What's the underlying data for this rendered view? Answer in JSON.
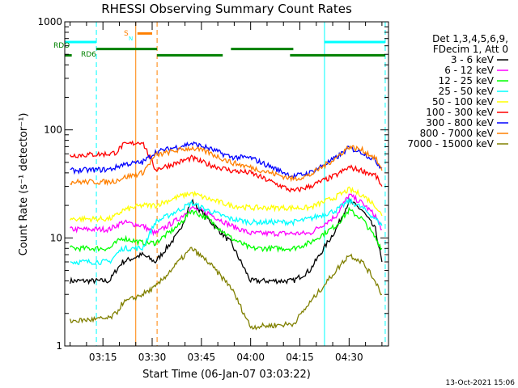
{
  "chart_data": {
    "type": "line",
    "title": "RHESSI Observing Summary Count Rates",
    "xlabel": "Start Time (06-Jan-07 03:03:22)",
    "ylabel": "Count Rate (s⁻¹ detector⁻¹)",
    "y_scale": "log",
    "ylim": [
      1,
      1000
    ],
    "xlim": [
      "03:03:22",
      "04:42:00"
    ],
    "x_ticks": [
      "03:15",
      "03:30",
      "03:45",
      "04:00",
      "04:15",
      "04:30"
    ],
    "y_ticks": [
      "1",
      "10",
      "100",
      "1000"
    ],
    "footer": "13-Oct-2021 15:06",
    "legend_position": "right",
    "legend_header": [
      "Det 1,3,4,5,6,9,",
      "FDecim 1, Att 0"
    ],
    "series": [
      {
        "name": "3 - 6 keV",
        "color": "#000000",
        "x": [
          "03:05",
          "03:17",
          "03:19",
          "03:21",
          "03:27",
          "03:31",
          "03:38",
          "03:42",
          "03:47",
          "03:54",
          "04:00",
          "04:13",
          "04:18",
          "04:26",
          "04:30",
          "04:34",
          "04:38",
          "04:40"
        ],
        "values": [
          4,
          4,
          5,
          6,
          7,
          6,
          11,
          22,
          15,
          9,
          4,
          4,
          5,
          12,
          22,
          18,
          12,
          6
        ]
      },
      {
        "name": "6 - 12 keV",
        "color": "#ff00ff",
        "x": [
          "03:05",
          "03:17",
          "03:19",
          "03:21",
          "03:27",
          "03:31",
          "03:38",
          "03:42",
          "03:47",
          "03:54",
          "04:00",
          "04:13",
          "04:18",
          "04:26",
          "04:30",
          "04:34",
          "04:38",
          "04:40"
        ],
        "values": [
          12,
          12,
          13,
          14,
          13,
          11,
          15,
          19,
          17,
          13,
          11,
          11,
          11,
          16,
          25,
          21,
          16,
          12
        ]
      },
      {
        "name": "12 - 25 keV",
        "color": "#00ff00",
        "x": [
          "03:05",
          "03:17",
          "03:19",
          "03:21",
          "03:27",
          "03:31",
          "03:38",
          "03:42",
          "03:47",
          "03:54",
          "04:00",
          "04:13",
          "04:18",
          "04:26",
          "04:30",
          "04:34",
          "04:38",
          "04:40"
        ],
        "values": [
          8,
          8,
          9,
          10,
          9,
          9,
          13,
          18,
          15,
          10,
          8,
          8,
          9,
          13,
          18,
          15,
          10,
          8
        ]
      },
      {
        "name": "25 - 50 keV",
        "color": "#00ffff",
        "x": [
          "03:05",
          "03:17",
          "03:19",
          "03:21",
          "03:27",
          "03:31",
          "03:38",
          "03:42",
          "03:47",
          "03:54",
          "04:00",
          "04:13",
          "04:18",
          "04:26",
          "04:30",
          "04:34",
          "04:38",
          "04:40"
        ],
        "values": [
          6,
          6,
          7,
          8,
          8,
          14,
          18,
          21,
          18,
          15,
          14,
          14,
          15,
          18,
          22,
          19,
          15,
          13
        ]
      },
      {
        "name": "50 - 100 keV",
        "color": "#ffff00",
        "x": [
          "03:05",
          "03:17",
          "03:19",
          "03:21",
          "03:27",
          "03:31",
          "03:38",
          "03:42",
          "03:47",
          "03:54",
          "04:00",
          "04:13",
          "04:18",
          "04:26",
          "04:30",
          "04:34",
          "04:38",
          "04:40"
        ],
        "values": [
          15,
          15,
          16,
          18,
          20,
          20,
          24,
          26,
          23,
          20,
          19,
          19,
          19,
          24,
          28,
          25,
          20,
          16
        ]
      },
      {
        "name": "100 - 300 keV",
        "color": "#ff0000",
        "x": [
          "03:05",
          "03:17",
          "03:19",
          "03:21",
          "03:27",
          "03:31",
          "03:38",
          "03:42",
          "03:47",
          "03:54",
          "04:00",
          "04:13",
          "04:18",
          "04:26",
          "04:30",
          "04:34",
          "04:38",
          "04:40"
        ],
        "values": [
          58,
          60,
          62,
          72,
          78,
          43,
          50,
          55,
          48,
          42,
          40,
          27,
          30,
          38,
          45,
          42,
          38,
          30
        ]
      },
      {
        "name": "300 - 800 keV",
        "color": "#0000ff",
        "x": [
          "03:05",
          "03:17",
          "03:19",
          "03:21",
          "03:27",
          "03:31",
          "03:38",
          "03:42",
          "03:47",
          "03:54",
          "04:00",
          "04:13",
          "04:18",
          "04:26",
          "04:30",
          "04:34",
          "04:38",
          "04:40"
        ],
        "values": [
          42,
          43,
          45,
          48,
          50,
          62,
          70,
          75,
          68,
          56,
          55,
          37,
          40,
          55,
          68,
          62,
          52,
          44
        ]
      },
      {
        "name": "800 - 7000 keV",
        "color": "#ff8000",
        "x": [
          "03:05",
          "03:17",
          "03:19",
          "03:21",
          "03:27",
          "03:31",
          "03:38",
          "03:42",
          "03:47",
          "03:54",
          "04:00",
          "04:13",
          "04:18",
          "04:26",
          "04:30",
          "04:34",
          "04:38",
          "04:40"
        ],
        "values": [
          33,
          33,
          34,
          36,
          40,
          58,
          65,
          68,
          62,
          50,
          45,
          35,
          38,
          55,
          70,
          65,
          55,
          42
        ]
      },
      {
        "name": "7000 - 15000 keV",
        "color": "#808000",
        "x": [
          "03:05",
          "03:17",
          "03:19",
          "03:21",
          "03:27",
          "03:31",
          "03:38",
          "03:42",
          "03:47",
          "03:54",
          "04:00",
          "04:13",
          "04:18",
          "04:26",
          "04:30",
          "04:34",
          "04:38",
          "04:40"
        ],
        "values": [
          1.7,
          1.8,
          2.0,
          2.5,
          3.0,
          3.5,
          6.0,
          8.0,
          6.0,
          3.5,
          1.5,
          1.6,
          2.5,
          5.0,
          7.0,
          6.0,
          4.0,
          3.0
        ]
      }
    ],
    "flag_bars": [
      {
        "name": "SAA",
        "color": "#00ffff",
        "level": 650,
        "spans": [
          [
            "03:03:22",
            "03:13:00"
          ],
          [
            "04:22:30",
            "04:41:00"
          ]
        ]
      },
      {
        "name": "ECLIPSE",
        "color": "#ff8000",
        "level": 780,
        "spans": [
          [
            "03:25:30",
            "03:30:00"
          ]
        ]
      },
      {
        "name": "RDO",
        "color": "#008000",
        "level": 560,
        "spans": [
          [
            "03:13:00",
            "03:31:30"
          ],
          [
            "03:54:00",
            "04:13:00"
          ]
        ]
      },
      {
        "name": "RD6",
        "color": "#008000",
        "level": 490,
        "spans": [
          [
            "03:03:22",
            "03:05:30"
          ],
          [
            "03:31:30",
            "03:51:30"
          ],
          [
            "04:12:00",
            "04:41:00"
          ]
        ]
      }
    ],
    "flag_labels": [
      {
        "text": "RDO",
        "color": "#008000"
      },
      {
        "text": "RD6",
        "color": "#008000"
      },
      {
        "text": "S",
        "color": "#ff8000"
      },
      {
        "text": "N",
        "color": "#00ffff"
      }
    ],
    "vlines": [
      {
        "t": "03:25:00",
        "color": "#ff8000",
        "style": "solid"
      },
      {
        "t": "03:31:30",
        "color": "#ff8000",
        "style": "dashed"
      },
      {
        "t": "03:13:00",
        "color": "#00ffff",
        "style": "dashed"
      },
      {
        "t": "04:22:30",
        "color": "#00ffff",
        "style": "solid"
      },
      {
        "t": "04:41:00",
        "color": "#00ffff",
        "style": "dashed"
      }
    ]
  }
}
